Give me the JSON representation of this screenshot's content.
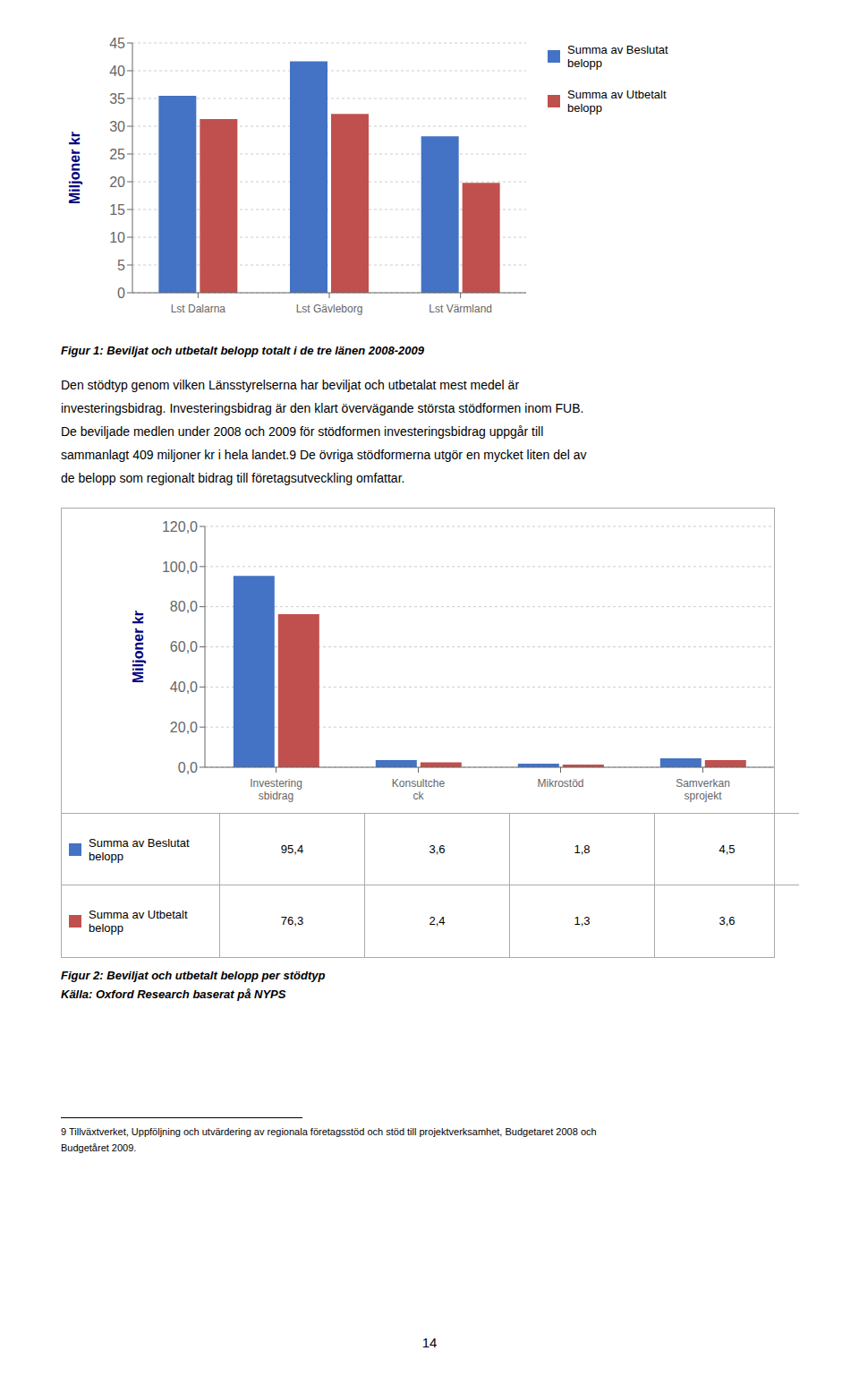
{
  "chart_data": [
    {
      "type": "bar",
      "title": "Figur 1: Beviljat och utbetalt belopp totalt i de tre länen 2008-2009",
      "categories": [
        "Lst Dalarna",
        "Lst Gävleborg",
        "Lst Värmland"
      ],
      "series": [
        {
          "name": "Summa av Beslutat\nbelopp",
          "color": "#4472C4",
          "values": [
            35.5,
            41.7,
            28.2
          ]
        },
        {
          "name": "Summa av Utbetalt\nbelopp",
          "color": "#C0504D",
          "values": [
            31.3,
            32.2,
            19.8
          ]
        }
      ],
      "ylabel": "Miljoner kr",
      "ylim": [
        0,
        45
      ],
      "yticks": [
        0,
        5,
        10,
        15,
        20,
        25,
        30,
        35,
        40,
        45
      ],
      "grid": true,
      "legend": "right"
    },
    {
      "type": "bar",
      "title": "Figur 2: Beviljat och utbetalt belopp per stödtyp",
      "annotations": [
        "Källa: Oxford Research baserat på NYPS"
      ],
      "categories": [
        "Investering\nsbidrag",
        "Konsultche\nck",
        "Mikrostöd",
        "Samverkan\nsprojekt"
      ],
      "series": [
        {
          "name": "Summa av Beslutat\nbelopp",
          "color": "#4472C4",
          "values": [
            95.4,
            3.6,
            1.8,
            4.5
          ],
          "value_labels": [
            "95,4",
            "3,6",
            "1,8",
            "4,5"
          ]
        },
        {
          "name": "Summa av Utbetalt\nbelopp",
          "color": "#C0504D",
          "values": [
            76.3,
            2.4,
            1.3,
            3.6
          ],
          "value_labels": [
            "76,3",
            "2,4",
            "1,3",
            "3,6"
          ]
        }
      ],
      "ylabel": "Miljoner kr",
      "ylim": [
        0,
        120
      ],
      "yticks": [
        {
          "value": 0,
          "label": "0,0"
        },
        {
          "value": 20,
          "label": "20,0"
        },
        {
          "value": 40,
          "label": "40,0"
        },
        {
          "value": 60,
          "label": "60,0"
        },
        {
          "value": 80,
          "label": "80,0"
        },
        {
          "value": 100,
          "label": "100,0"
        },
        {
          "value": 120,
          "label": "120,0"
        }
      ],
      "grid": true
    }
  ],
  "body_text": [
    "Den stödtyp genom vilken Länsstyrelserna har beviljat och utbetalat mest medel är",
    "investeringsbidrag. Investeringsbidrag är den klart övervägande största stödformen inom FUB.",
    "De beviljade medlen under 2008 och 2009 för stödformen investeringsbidrag uppgår till",
    "sammanlagt 409 miljoner kr i hela landet.9 De övriga stödformerna utgör en mycket liten del av",
    "de belopp som regionalt bidrag till företagsutveckling omfattar."
  ],
  "footnote": [
    "9 Tillväxtverket, Uppföljning och utvärdering av regionala företagsstöd och stöd till projektverksamhet, Budgetaret 2008 och",
    "Budgetåret 2009."
  ],
  "page_number": "14"
}
